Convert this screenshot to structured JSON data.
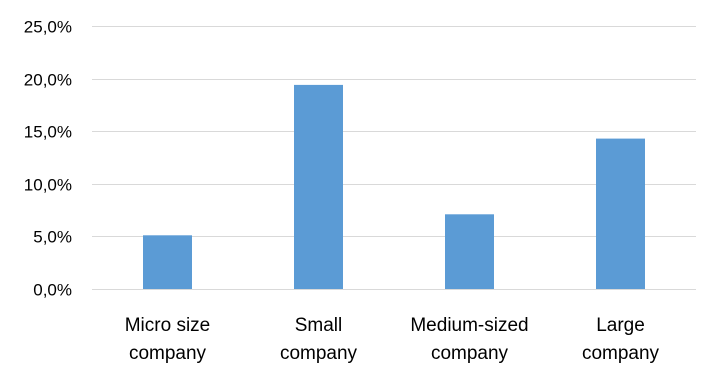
{
  "chart_data": {
    "type": "bar",
    "title": "",
    "xlabel": "",
    "ylabel": "",
    "categories": [
      [
        "Micro size",
        "company"
      ],
      [
        "Small",
        "company"
      ],
      [
        "Medium-sized",
        "company"
      ],
      [
        "Large",
        "company"
      ]
    ],
    "values": [
      5.1,
      19.4,
      7.1,
      14.3
    ],
    "ylim": [
      0,
      25
    ],
    "yticks": [
      0,
      5,
      10,
      15,
      20,
      25
    ],
    "ytick_labels": [
      "0,0%",
      "5,0%",
      "10,0%",
      "15,0%",
      "20,0%",
      "25,0%"
    ],
    "grid": true,
    "legend": "none",
    "bar_color": "#5b9bd5"
  }
}
